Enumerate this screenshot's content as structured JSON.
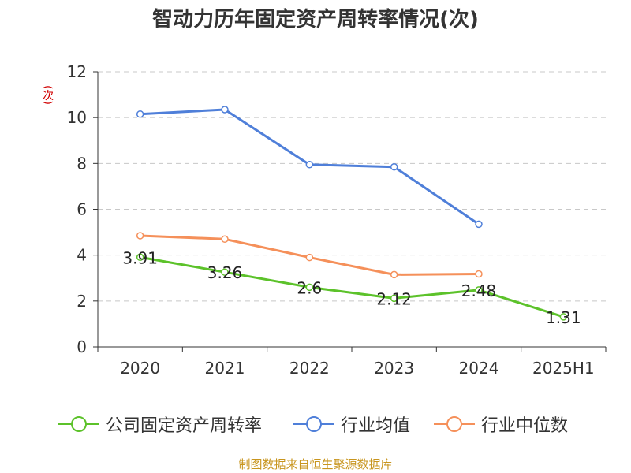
{
  "title": "智动力历年固定资产周转率情况(次)",
  "unit_label": "(次)",
  "source": "制图数据来自恒生聚源数据库",
  "colors": {
    "company": "#5cc22a",
    "industry_avg": "#4f7fd9",
    "industry_median": "#f5905a",
    "grid": "#c8c8c8",
    "axis": "#333333",
    "unit": "#d00000",
    "source": "#c8951e"
  },
  "chart_data": {
    "type": "line",
    "title": "智动力历年固定资产周转率情况(次)",
    "ylabel": "(次)",
    "xlabel": "",
    "categories": [
      "2020",
      "2021",
      "2022",
      "2023",
      "2024",
      "2025H1"
    ],
    "ylim": [
      0,
      12
    ],
    "yticks": [
      "0",
      "2",
      "4",
      "6",
      "8",
      "10",
      "12"
    ],
    "grid": true,
    "legend_position": "bottom",
    "series": [
      {
        "name": "公司固定资产周转率",
        "key": "company",
        "values": [
          3.91,
          3.26,
          2.6,
          2.12,
          2.48,
          1.31
        ],
        "labels": [
          "3.91",
          "3.26",
          "2.6",
          "2.12",
          "2.48",
          "1.31"
        ]
      },
      {
        "name": "行业均值",
        "key": "industry_avg",
        "values": [
          10.15,
          10.35,
          7.95,
          7.85,
          5.35,
          null
        ]
      },
      {
        "name": "行业中位数",
        "key": "industry_median",
        "values": [
          4.85,
          4.7,
          3.9,
          3.15,
          3.18,
          null
        ]
      }
    ]
  }
}
